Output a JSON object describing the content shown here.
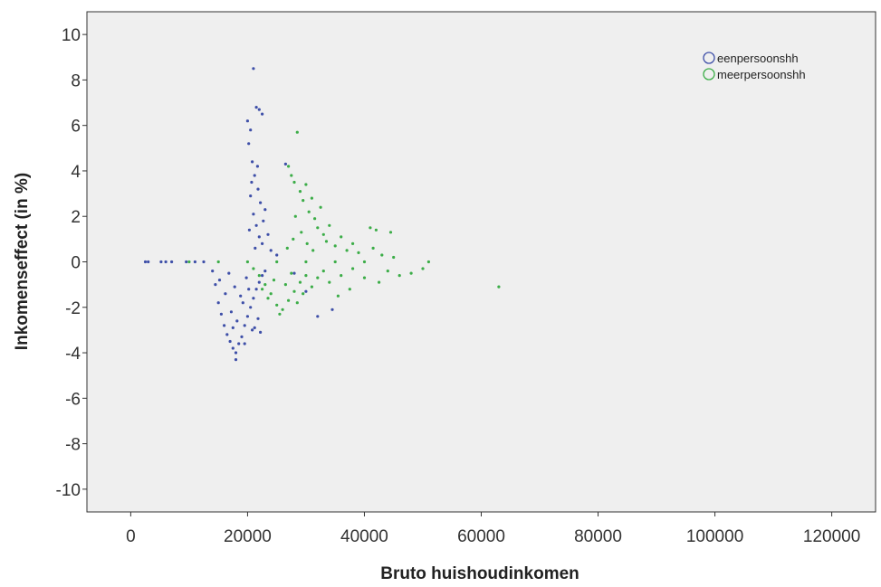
{
  "chart_data": {
    "type": "scatter",
    "xlabel": "Bruto huishoudinkomen",
    "ylabel": "Inkomenseffect (in %)",
    "xlim": [
      -7500,
      127500
    ],
    "ylim": [
      -11,
      11
    ],
    "xticks": [
      0,
      20000,
      40000,
      60000,
      80000,
      100000,
      120000
    ],
    "yticks": [
      10,
      8,
      6,
      4,
      2,
      0,
      -2,
      -4,
      -6,
      -8,
      -10
    ],
    "grid": false,
    "legend_position": "top-right",
    "series": [
      {
        "name": "eenpersoonshh",
        "color": "#3e4fa8",
        "marker": "circle",
        "points": [
          [
            2500,
            0
          ],
          [
            3000,
            0
          ],
          [
            5200,
            0
          ],
          [
            6000,
            0
          ],
          [
            7000,
            0
          ],
          [
            9500,
            0
          ],
          [
            11000,
            0
          ],
          [
            12500,
            0
          ],
          [
            14000,
            -0.4
          ],
          [
            14500,
            -1.0
          ],
          [
            15000,
            -1.8
          ],
          [
            15500,
            -2.3
          ],
          [
            16000,
            -2.8
          ],
          [
            16500,
            -3.2
          ],
          [
            17000,
            -3.5
          ],
          [
            17500,
            -3.8
          ],
          [
            18000,
            -4.0
          ],
          [
            18000,
            -4.3
          ],
          [
            18500,
            -3.6
          ],
          [
            19000,
            -3.3
          ],
          [
            19500,
            -2.8
          ],
          [
            20000,
            -2.4
          ],
          [
            20500,
            -2.0
          ],
          [
            21000,
            -1.6
          ],
          [
            21500,
            -1.2
          ],
          [
            22000,
            -0.9
          ],
          [
            22500,
            -0.6
          ],
          [
            15200,
            -0.8
          ],
          [
            16200,
            -1.4
          ],
          [
            17200,
            -2.2
          ],
          [
            18200,
            -2.6
          ],
          [
            19200,
            -1.8
          ],
          [
            20200,
            -1.2
          ],
          [
            21200,
            -2.9
          ],
          [
            22200,
            -3.1
          ],
          [
            16800,
            -0.5
          ],
          [
            17800,
            -1.1
          ],
          [
            18800,
            -1.5
          ],
          [
            19800,
            -0.7
          ],
          [
            20800,
            -3.0
          ],
          [
            23000,
            -0.4
          ],
          [
            21800,
            -2.5
          ],
          [
            17500,
            -2.9
          ],
          [
            19500,
            -3.6
          ],
          [
            20000,
            6.2
          ],
          [
            20500,
            5.8
          ],
          [
            21000,
            8.5
          ],
          [
            21500,
            6.8
          ],
          [
            22000,
            6.7
          ],
          [
            22500,
            6.5
          ],
          [
            20200,
            5.2
          ],
          [
            20800,
            4.4
          ],
          [
            21200,
            3.8
          ],
          [
            21800,
            3.2
          ],
          [
            22200,
            2.6
          ],
          [
            20500,
            2.9
          ],
          [
            21000,
            2.1
          ],
          [
            21500,
            1.6
          ],
          [
            22000,
            1.1
          ],
          [
            22500,
            0.8
          ],
          [
            20300,
            1.4
          ],
          [
            21300,
            0.6
          ],
          [
            23000,
            2.3
          ],
          [
            23500,
            1.2
          ],
          [
            20700,
            3.5
          ],
          [
            21700,
            4.2
          ],
          [
            22700,
            1.8
          ],
          [
            24000,
            0.5
          ],
          [
            26500,
            4.3
          ],
          [
            30000,
            -1.3
          ],
          [
            32000,
            -2.4
          ],
          [
            34500,
            -2.1
          ],
          [
            28000,
            -0.5
          ],
          [
            25000,
            0.3
          ]
        ]
      },
      {
        "name": "meerpersoonshh",
        "color": "#3cad48",
        "marker": "circle",
        "points": [
          [
            10000,
            0
          ],
          [
            15000,
            0
          ],
          [
            20000,
            0
          ],
          [
            25000,
            0
          ],
          [
            30000,
            0
          ],
          [
            35000,
            0
          ],
          [
            40000,
            0
          ],
          [
            21000,
            -0.3
          ],
          [
            22000,
            -0.6
          ],
          [
            23000,
            -1.0
          ],
          [
            24000,
            -1.4
          ],
          [
            25000,
            -1.9
          ],
          [
            25500,
            -2.3
          ],
          [
            26000,
            -2.1
          ],
          [
            27000,
            -1.7
          ],
          [
            28000,
            -1.3
          ],
          [
            29000,
            -0.9
          ],
          [
            30000,
            -0.6
          ],
          [
            22500,
            -1.2
          ],
          [
            23500,
            -1.6
          ],
          [
            24500,
            -0.8
          ],
          [
            26500,
            -1.0
          ],
          [
            27500,
            -0.5
          ],
          [
            28500,
            -1.8
          ],
          [
            29500,
            -1.4
          ],
          [
            31000,
            -1.1
          ],
          [
            32000,
            -0.7
          ],
          [
            33000,
            -0.4
          ],
          [
            34000,
            -0.9
          ],
          [
            36000,
            -0.6
          ],
          [
            38000,
            -0.3
          ],
          [
            27000,
            4.2
          ],
          [
            27500,
            3.8
          ],
          [
            28000,
            3.5
          ],
          [
            28500,
            5.7
          ],
          [
            29000,
            3.1
          ],
          [
            29500,
            2.7
          ],
          [
            30000,
            3.4
          ],
          [
            30500,
            2.2
          ],
          [
            31000,
            2.8
          ],
          [
            31500,
            1.9
          ],
          [
            32000,
            1.5
          ],
          [
            32500,
            2.4
          ],
          [
            33000,
            1.2
          ],
          [
            33500,
            0.9
          ],
          [
            34000,
            1.6
          ],
          [
            35000,
            0.7
          ],
          [
            36000,
            1.1
          ],
          [
            37000,
            0.5
          ],
          [
            38000,
            0.8
          ],
          [
            39000,
            0.4
          ],
          [
            28200,
            2.0
          ],
          [
            29200,
            1.3
          ],
          [
            30200,
            0.8
          ],
          [
            31200,
            0.5
          ],
          [
            27800,
            1.0
          ],
          [
            26800,
            0.6
          ],
          [
            41000,
            1.5
          ],
          [
            42000,
            1.4
          ],
          [
            44500,
            1.3
          ],
          [
            41500,
            0.6
          ],
          [
            43000,
            0.3
          ],
          [
            44000,
            -0.4
          ],
          [
            46000,
            -0.6
          ],
          [
            48000,
            -0.5
          ],
          [
            50000,
            -0.3
          ],
          [
            51000,
            0
          ],
          [
            40000,
            -0.7
          ],
          [
            42500,
            -0.9
          ],
          [
            45000,
            0.2
          ],
          [
            63000,
            -1.1
          ],
          [
            35500,
            -1.5
          ],
          [
            37500,
            -1.2
          ]
        ]
      }
    ]
  }
}
